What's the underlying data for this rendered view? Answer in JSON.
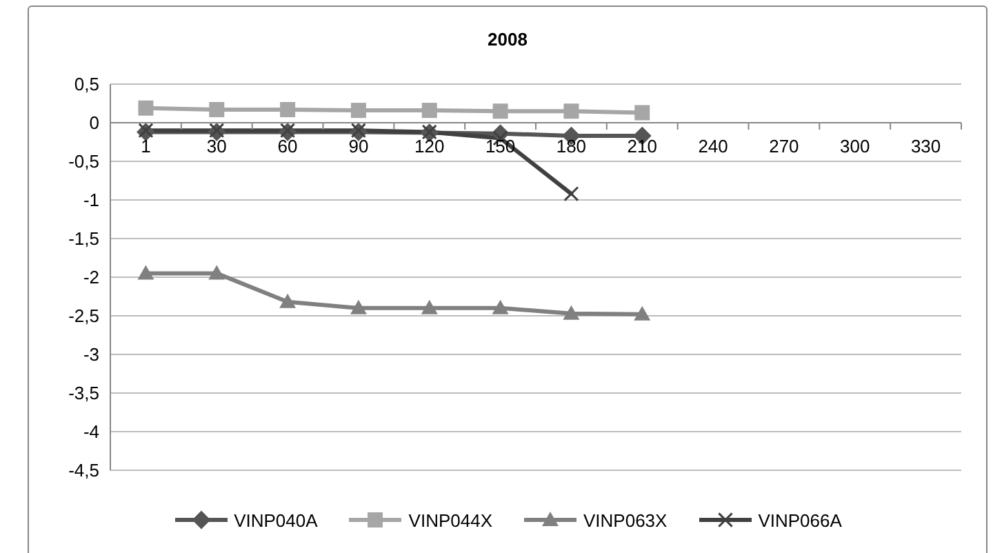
{
  "chart_data": {
    "type": "line",
    "title": "2008",
    "categories": [
      "1",
      "30",
      "60",
      "90",
      "120",
      "150",
      "180",
      "210",
      "240",
      "270",
      "300",
      "330"
    ],
    "series": [
      {
        "name": "VINP040A",
        "color": "#555555",
        "marker": "diamond",
        "values": [
          -0.12,
          -0.12,
          -0.12,
          -0.12,
          -0.13,
          -0.14,
          -0.17,
          -0.17,
          null,
          null,
          null,
          null
        ]
      },
      {
        "name": "VINP044X",
        "color": "#a6a6a6",
        "marker": "square",
        "values": [
          0.19,
          0.17,
          0.17,
          0.16,
          0.16,
          0.15,
          0.15,
          0.13,
          null,
          null,
          null,
          null
        ]
      },
      {
        "name": "VINP063X",
        "color": "#808080",
        "marker": "triangle",
        "values": [
          -1.95,
          -1.95,
          -2.32,
          -2.4,
          -2.4,
          -2.4,
          -2.47,
          -2.48,
          null,
          null,
          null,
          null
        ]
      },
      {
        "name": "VINP066A",
        "color": "#404040",
        "marker": "cross",
        "values": [
          -0.1,
          -0.1,
          -0.1,
          -0.1,
          -0.12,
          -0.2,
          -0.92,
          null,
          null,
          null,
          null,
          null
        ]
      }
    ],
    "ylim": [
      -4.5,
      0.5
    ],
    "yticks": [
      {
        "value": 0.5,
        "label": "0,5"
      },
      0,
      {
        "value": -0.5,
        "label": "-0,5"
      },
      -1,
      {
        "value": -1.5,
        "label": "-1,5"
      },
      -2,
      {
        "value": -2.5,
        "label": "-2,5"
      },
      -3,
      {
        "value": -3.5,
        "label": "-3,5"
      },
      -4,
      {
        "value": -4.5,
        "label": "-4,5"
      }
    ],
    "grid": "y",
    "legend": "bottom"
  }
}
